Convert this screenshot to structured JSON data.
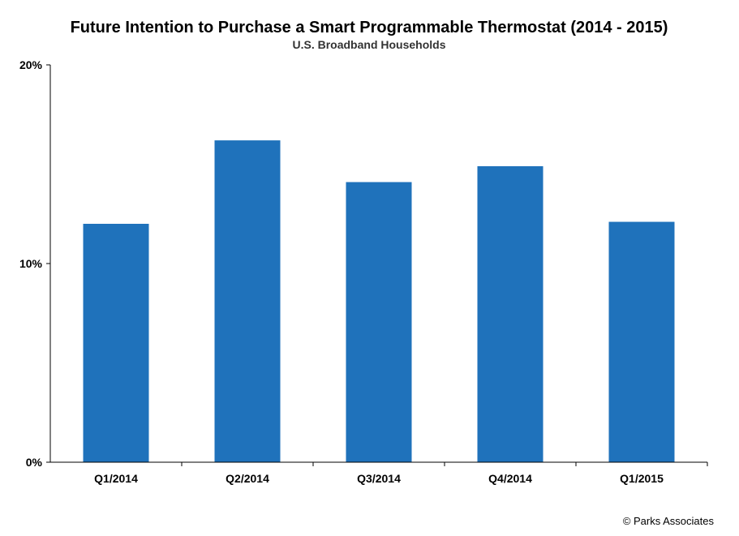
{
  "chart_data": {
    "type": "bar",
    "title": "Future Intention to Purchase a Smart Programmable Thermostat (2014 - 2015)",
    "subtitle": "U.S. Broadband Households",
    "categories": [
      "Q1/2014",
      "Q2/2014",
      "Q3/2014",
      "Q4/2014",
      "Q1/2015"
    ],
    "values": [
      12.0,
      16.2,
      14.1,
      14.9,
      12.1
    ],
    "unit": "%",
    "ylim": [
      0,
      20
    ],
    "yticks": [
      "0%",
      "10%",
      "20%"
    ],
    "ytick_values": [
      0,
      10,
      20
    ],
    "xlabel": "",
    "ylabel": "",
    "grid": false,
    "legend": "none",
    "bar_color": "#1f72bb"
  },
  "credit": "© Parks Associates"
}
